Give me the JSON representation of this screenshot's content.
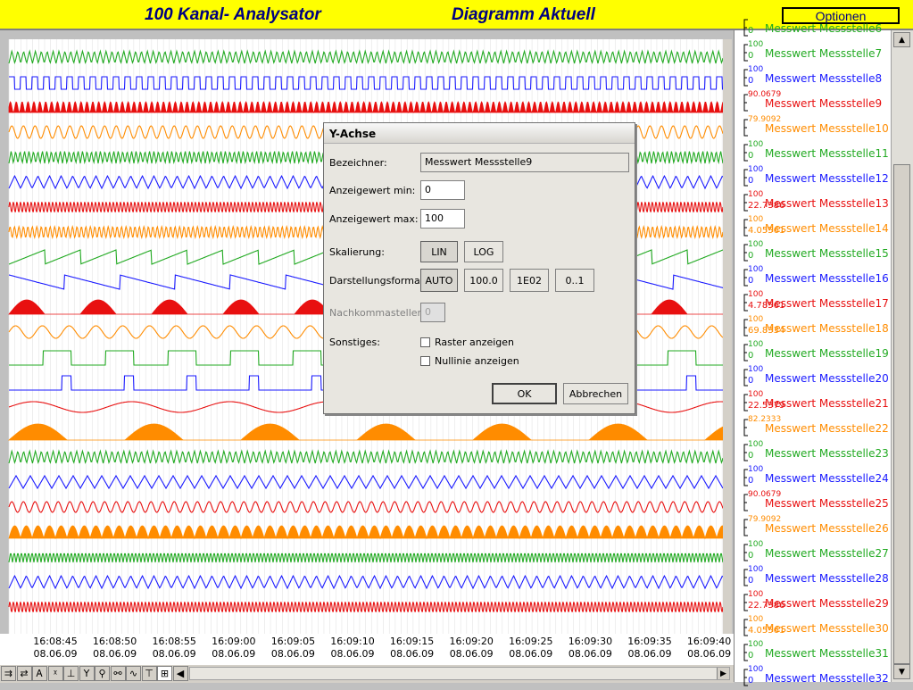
{
  "header": {
    "app_title": "100 Kanal- Analysator",
    "view_title": "Diagramm Aktuell",
    "options_label": "Optionen"
  },
  "time_axis": {
    "ticks": [
      {
        "time": "16:08:45",
        "date": "08.06.09"
      },
      {
        "time": "16:08:50",
        "date": "08.06.09"
      },
      {
        "time": "16:08:55",
        "date": "08.06.09"
      },
      {
        "time": "16:09:00",
        "date": "08.06.09"
      },
      {
        "time": "16:09:05",
        "date": "08.06.09"
      },
      {
        "time": "16:09:10",
        "date": "08.06.09"
      },
      {
        "time": "16:09:15",
        "date": "08.06.09"
      },
      {
        "time": "16:09:20",
        "date": "08.06.09"
      },
      {
        "time": "16:09:25",
        "date": "08.06.09"
      },
      {
        "time": "16:09:30",
        "date": "08.06.09"
      },
      {
        "time": "16:09:35",
        "date": "08.06.09"
      },
      {
        "time": "16:09:40",
        "date": "08.06.09"
      }
    ]
  },
  "toolbar_icons": [
    "pan-icon",
    "zoom-x-icon",
    "scale-a-icon",
    "scale-2-icon",
    "scale-b-icon",
    "scale-y-icon",
    "zoom-icon",
    "zoom-out-icon",
    "curve-icon",
    "cursor-icon",
    "grid-icon",
    "left-arrow-icon"
  ],
  "legend": {
    "items": [
      {
        "name": "Messwert Messstelle6",
        "top": "",
        "bottom": "0",
        "color": "#22aa22"
      },
      {
        "name": "Messwert Messstelle7",
        "top": "100",
        "bottom": "0",
        "color": "#22aa22"
      },
      {
        "name": "Messwert Messstelle8",
        "top": "100",
        "bottom": "0",
        "color": "#1a1aff"
      },
      {
        "name": "Messwert Messstelle9",
        "top": "90.0679",
        "bottom": "",
        "color": "#e81010"
      },
      {
        "name": "Messwert Messstelle10",
        "top": "79.9092",
        "bottom": "",
        "color": "#ff8c00"
      },
      {
        "name": "Messwert Messstelle11",
        "top": "100",
        "bottom": "0",
        "color": "#22aa22"
      },
      {
        "name": "Messwert Messstelle12",
        "top": "100",
        "bottom": "0",
        "color": "#1a1aff"
      },
      {
        "name": "Messwert Messstelle13",
        "top": "100",
        "bottom": "22.7386",
        "color": "#e81010"
      },
      {
        "name": "Messwert Messstelle14",
        "top": "100",
        "bottom": "4.05561",
        "color": "#ff8c00"
      },
      {
        "name": "Messwert Messstelle15",
        "top": "100",
        "bottom": "0",
        "color": "#22aa22"
      },
      {
        "name": "Messwert Messstelle16",
        "top": "100",
        "bottom": "0",
        "color": "#1a1aff"
      },
      {
        "name": "Messwert Messstelle17",
        "top": "100",
        "bottom": "4.78561",
        "color": "#e81010"
      },
      {
        "name": "Messwert Messstelle18",
        "top": "100",
        "bottom": "69.8334",
        "color": "#ff8c00"
      },
      {
        "name": "Messwert Messstelle19",
        "top": "100",
        "bottom": "0",
        "color": "#22aa22"
      },
      {
        "name": "Messwert Messstelle20",
        "top": "100",
        "bottom": "0",
        "color": "#1a1aff"
      },
      {
        "name": "Messwert Messstelle21",
        "top": "100",
        "bottom": "22.5379",
        "color": "#e81010"
      },
      {
        "name": "Messwert Messstelle22",
        "top": "82.2333",
        "bottom": "",
        "color": "#ff8c00"
      },
      {
        "name": "Messwert Messstelle23",
        "top": "100",
        "bottom": "0",
        "color": "#22aa22"
      },
      {
        "name": "Messwert Messstelle24",
        "top": "100",
        "bottom": "0",
        "color": "#1a1aff"
      },
      {
        "name": "Messwert Messstelle25",
        "top": "90.0679",
        "bottom": "",
        "color": "#e81010"
      },
      {
        "name": "Messwert Messstelle26",
        "top": "79.9092",
        "bottom": "",
        "color": "#ff8c00"
      },
      {
        "name": "Messwert Messstelle27",
        "top": "100",
        "bottom": "0",
        "color": "#22aa22"
      },
      {
        "name": "Messwert Messstelle28",
        "top": "100",
        "bottom": "0",
        "color": "#1a1aff"
      },
      {
        "name": "Messwert Messstelle29",
        "top": "100",
        "bottom": "22.7386",
        "color": "#e81010"
      },
      {
        "name": "Messwert Messstelle30",
        "top": "100",
        "bottom": "4.05561",
        "color": "#ff8c00"
      },
      {
        "name": "Messwert Messstelle31",
        "top": "100",
        "bottom": "0",
        "color": "#22aa22"
      },
      {
        "name": "Messwert Messstelle32",
        "top": "100",
        "bottom": "0",
        "color": "#1a1aff"
      }
    ]
  },
  "dialog": {
    "title": "Y-Achse",
    "label_name": "Bezeichner:",
    "name_value": "Messwert Messstelle9",
    "label_min": "Anzeigewert min:",
    "min_value": "0",
    "label_max": "Anzeigewert max:",
    "max_value": "100",
    "label_scale": "Skalierung:",
    "btn_lin": "LIN",
    "btn_log": "LOG",
    "label_format": "Darstellungsformat:",
    "btn_auto": "AUTO",
    "btn_fmt1": "100.0",
    "btn_fmt2": "1E02",
    "btn_fmt3": "0..1",
    "label_decimals": "Nachkommastellen:",
    "decimals_value": "0",
    "label_misc": "Sonstiges:",
    "chk_grid": "Raster anzeigen",
    "chk_zero": "Nullinie anzeigen",
    "btn_ok": "OK",
    "btn_cancel": "Abbrechen"
  },
  "colors": {
    "header_bg": "#ffff00",
    "title_text": "#000080",
    "green": "#22aa22",
    "blue": "#1a1aff",
    "red": "#e81010",
    "orange": "#ff8c00"
  }
}
